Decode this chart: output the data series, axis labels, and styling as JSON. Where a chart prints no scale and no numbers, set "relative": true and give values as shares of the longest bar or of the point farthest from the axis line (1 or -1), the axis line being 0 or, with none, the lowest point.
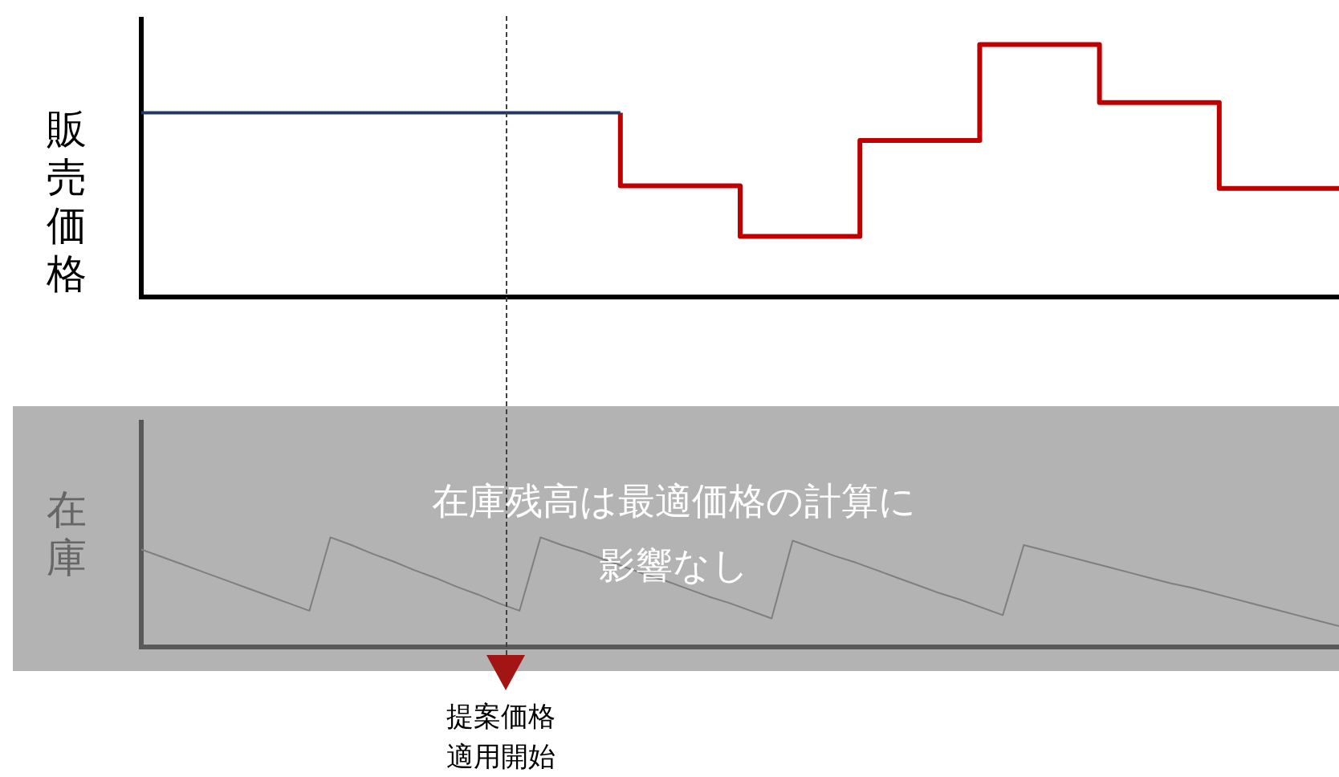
{
  "chart_data": [
    {
      "type": "step",
      "ylabel": "販売価格",
      "relative": true,
      "tick_labels": false,
      "grid": false,
      "legend": false,
      "categories": [
        null,
        null,
        null,
        null,
        null,
        null,
        null,
        null,
        null,
        null,
        null
      ],
      "series": [
        {
          "color": "#1f3864",
          "values": [
            0.73,
            0.73,
            0.73,
            0.73,
            0.73,
            null,
            null,
            null,
            null,
            null,
            null
          ]
        },
        {
          "color": "#c00000",
          "values": [
            null,
            null,
            null,
            null,
            0.73,
            0.44,
            0.24,
            0.62,
            1,
            0.77,
            0.43
          ]
        }
      ]
    },
    {
      "type": "line",
      "ylabel": "在庫",
      "relative": true,
      "tick_labels": false,
      "grid": false,
      "legend": false,
      "annotations": [
        "在庫残高は最適価格の計算に影響なし",
        "提案価格適用開始"
      ],
      "categories": [
        null,
        null,
        null,
        null,
        null,
        null,
        null,
        null,
        null,
        null,
        null,
        null,
        null,
        null,
        null,
        null,
        null,
        null,
        null,
        null,
        null,
        null,
        null,
        null,
        null,
        null,
        null,
        null,
        null,
        null,
        null,
        null,
        null,
        null,
        null,
        null,
        null,
        null,
        null,
        null,
        null,
        null,
        null,
        null,
        null,
        null,
        null,
        null,
        null,
        null,
        null,
        null,
        null,
        null,
        null,
        null,
        null,
        null
      ],
      "series": [
        {
          "color": "#7f7f7f",
          "values": [
            0.89,
            0.82,
            0.75,
            0.68,
            0.61,
            0.54,
            0.47,
            0.4,
            0.33,
            1,
            0.93,
            0.85,
            0.78,
            0.7,
            0.63,
            0.55,
            0.48,
            0.4,
            0.33,
            1,
            0.93,
            0.87,
            0.8,
            0.73,
            0.66,
            0.6,
            0.53,
            0.46,
            0.4,
            0.33,
            0.26,
            0.97,
            0.9,
            0.83,
            0.77,
            0.7,
            0.63,
            0.56,
            0.49,
            0.43,
            0.36,
            0.29,
            0.93,
            0.88,
            0.83,
            0.78,
            0.73,
            0.68,
            0.63,
            0.58,
            0.54,
            0.49,
            0.44,
            0.39,
            0.34,
            0.29,
            0.24,
            0.19
          ]
        }
      ]
    }
  ]
}
